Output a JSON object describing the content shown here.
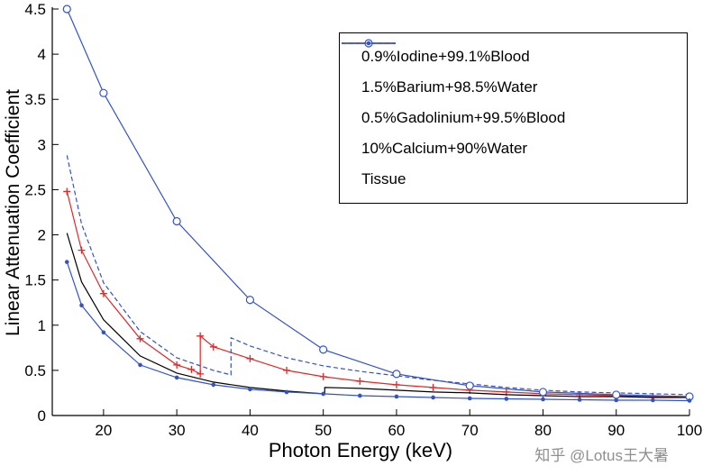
{
  "watermark": {
    "text": "知乎 @Lotus王大暑"
  },
  "chart_data": {
    "type": "line",
    "title": "",
    "xlabel": "Photon Energy (keV)",
    "ylabel": "Linear Attenuation Coefficient",
    "xlim_display": [
      13,
      100
    ],
    "xlim_data": [
      15,
      100
    ],
    "ylim": [
      0,
      4.5
    ],
    "x_ticks": [
      20,
      30,
      40,
      50,
      60,
      70,
      80,
      90,
      100
    ],
    "y_ticks": [
      0,
      0.5,
      1,
      1.5,
      2,
      2.5,
      3,
      3.5,
      4,
      4.5
    ],
    "grid": false,
    "legend_position": "upper-right-inside",
    "colors": {
      "red": "#d92b2b",
      "blue": "#3452c8",
      "black": "#000000",
      "axis": "#000000",
      "watermark_gray": "#8f8f8f"
    },
    "series": [
      {
        "name": "0.9%Iodine+99.1%Blood",
        "color": "#d92b2b",
        "line": "solid",
        "marker": "plus",
        "k_edge_keV": 33.2,
        "points": [
          [
            15,
            2.48
          ],
          [
            17,
            1.83
          ],
          [
            20,
            1.35
          ],
          [
            25,
            0.85
          ],
          [
            30,
            0.56
          ],
          [
            32,
            0.51
          ],
          [
            33.2,
            0.46
          ],
          [
            33.2,
            0.88
          ],
          [
            35,
            0.76
          ],
          [
            40,
            0.63
          ],
          [
            45,
            0.5
          ],
          [
            50,
            0.43
          ],
          [
            55,
            0.38
          ],
          [
            60,
            0.34
          ],
          [
            65,
            0.31
          ],
          [
            70,
            0.28
          ],
          [
            75,
            0.26
          ],
          [
            80,
            0.24
          ],
          [
            85,
            0.23
          ],
          [
            90,
            0.22
          ],
          [
            95,
            0.21
          ],
          [
            100,
            0.2
          ]
        ]
      },
      {
        "name": "1.5%Barium+98.5%Water",
        "color": "#3452c8",
        "line": "dashed",
        "marker": "none",
        "k_edge_keV": 37.4,
        "points": [
          [
            15,
            2.88
          ],
          [
            17,
            2.12
          ],
          [
            20,
            1.47
          ],
          [
            25,
            0.93
          ],
          [
            30,
            0.64
          ],
          [
            35,
            0.5
          ],
          [
            37.4,
            0.45
          ],
          [
            37.4,
            0.86
          ],
          [
            40,
            0.77
          ],
          [
            45,
            0.64
          ],
          [
            50,
            0.55
          ],
          [
            55,
            0.49
          ],
          [
            60,
            0.44
          ],
          [
            65,
            0.39
          ],
          [
            70,
            0.35
          ],
          [
            75,
            0.31
          ],
          [
            80,
            0.28
          ],
          [
            85,
            0.26
          ],
          [
            90,
            0.25
          ],
          [
            95,
            0.24
          ],
          [
            100,
            0.23
          ]
        ]
      },
      {
        "name": "0.5%Gadolinium+99.5%Blood",
        "color": "#000000",
        "line": "solid",
        "marker": "none",
        "k_edge_keV": 50.2,
        "points": [
          [
            15,
            2.02
          ],
          [
            17,
            1.48
          ],
          [
            20,
            1.06
          ],
          [
            25,
            0.66
          ],
          [
            30,
            0.47
          ],
          [
            35,
            0.37
          ],
          [
            40,
            0.31
          ],
          [
            45,
            0.27
          ],
          [
            50,
            0.24
          ],
          [
            50.2,
            0.24
          ],
          [
            50.2,
            0.31
          ],
          [
            55,
            0.3
          ],
          [
            60,
            0.28
          ],
          [
            65,
            0.26
          ],
          [
            70,
            0.25
          ],
          [
            75,
            0.23
          ],
          [
            80,
            0.22
          ],
          [
            85,
            0.21
          ],
          [
            90,
            0.21
          ],
          [
            95,
            0.2
          ],
          [
            100,
            0.2
          ]
        ]
      },
      {
        "name": "10%Calcium+90%Water",
        "color": "#3452c8",
        "line": "solid",
        "marker": "circle-open",
        "points": [
          [
            15,
            4.5
          ],
          [
            20,
            3.57
          ],
          [
            30,
            2.15
          ],
          [
            40,
            1.28
          ],
          [
            50,
            0.73
          ],
          [
            60,
            0.46
          ],
          [
            70,
            0.33
          ],
          [
            80,
            0.26
          ],
          [
            90,
            0.23
          ],
          [
            100,
            0.21
          ]
        ]
      },
      {
        "name": "Tissue",
        "color": "#3452c8",
        "line": "solid",
        "marker": "dot",
        "points": [
          [
            15,
            1.7
          ],
          [
            17,
            1.22
          ],
          [
            20,
            0.92
          ],
          [
            25,
            0.56
          ],
          [
            30,
            0.42
          ],
          [
            35,
            0.34
          ],
          [
            40,
            0.29
          ],
          [
            45,
            0.26
          ],
          [
            50,
            0.24
          ],
          [
            55,
            0.22
          ],
          [
            60,
            0.21
          ],
          [
            65,
            0.2
          ],
          [
            70,
            0.19
          ],
          [
            75,
            0.185
          ],
          [
            80,
            0.18
          ],
          [
            85,
            0.175
          ],
          [
            90,
            0.17
          ],
          [
            95,
            0.17
          ],
          [
            100,
            0.165
          ]
        ]
      }
    ]
  }
}
